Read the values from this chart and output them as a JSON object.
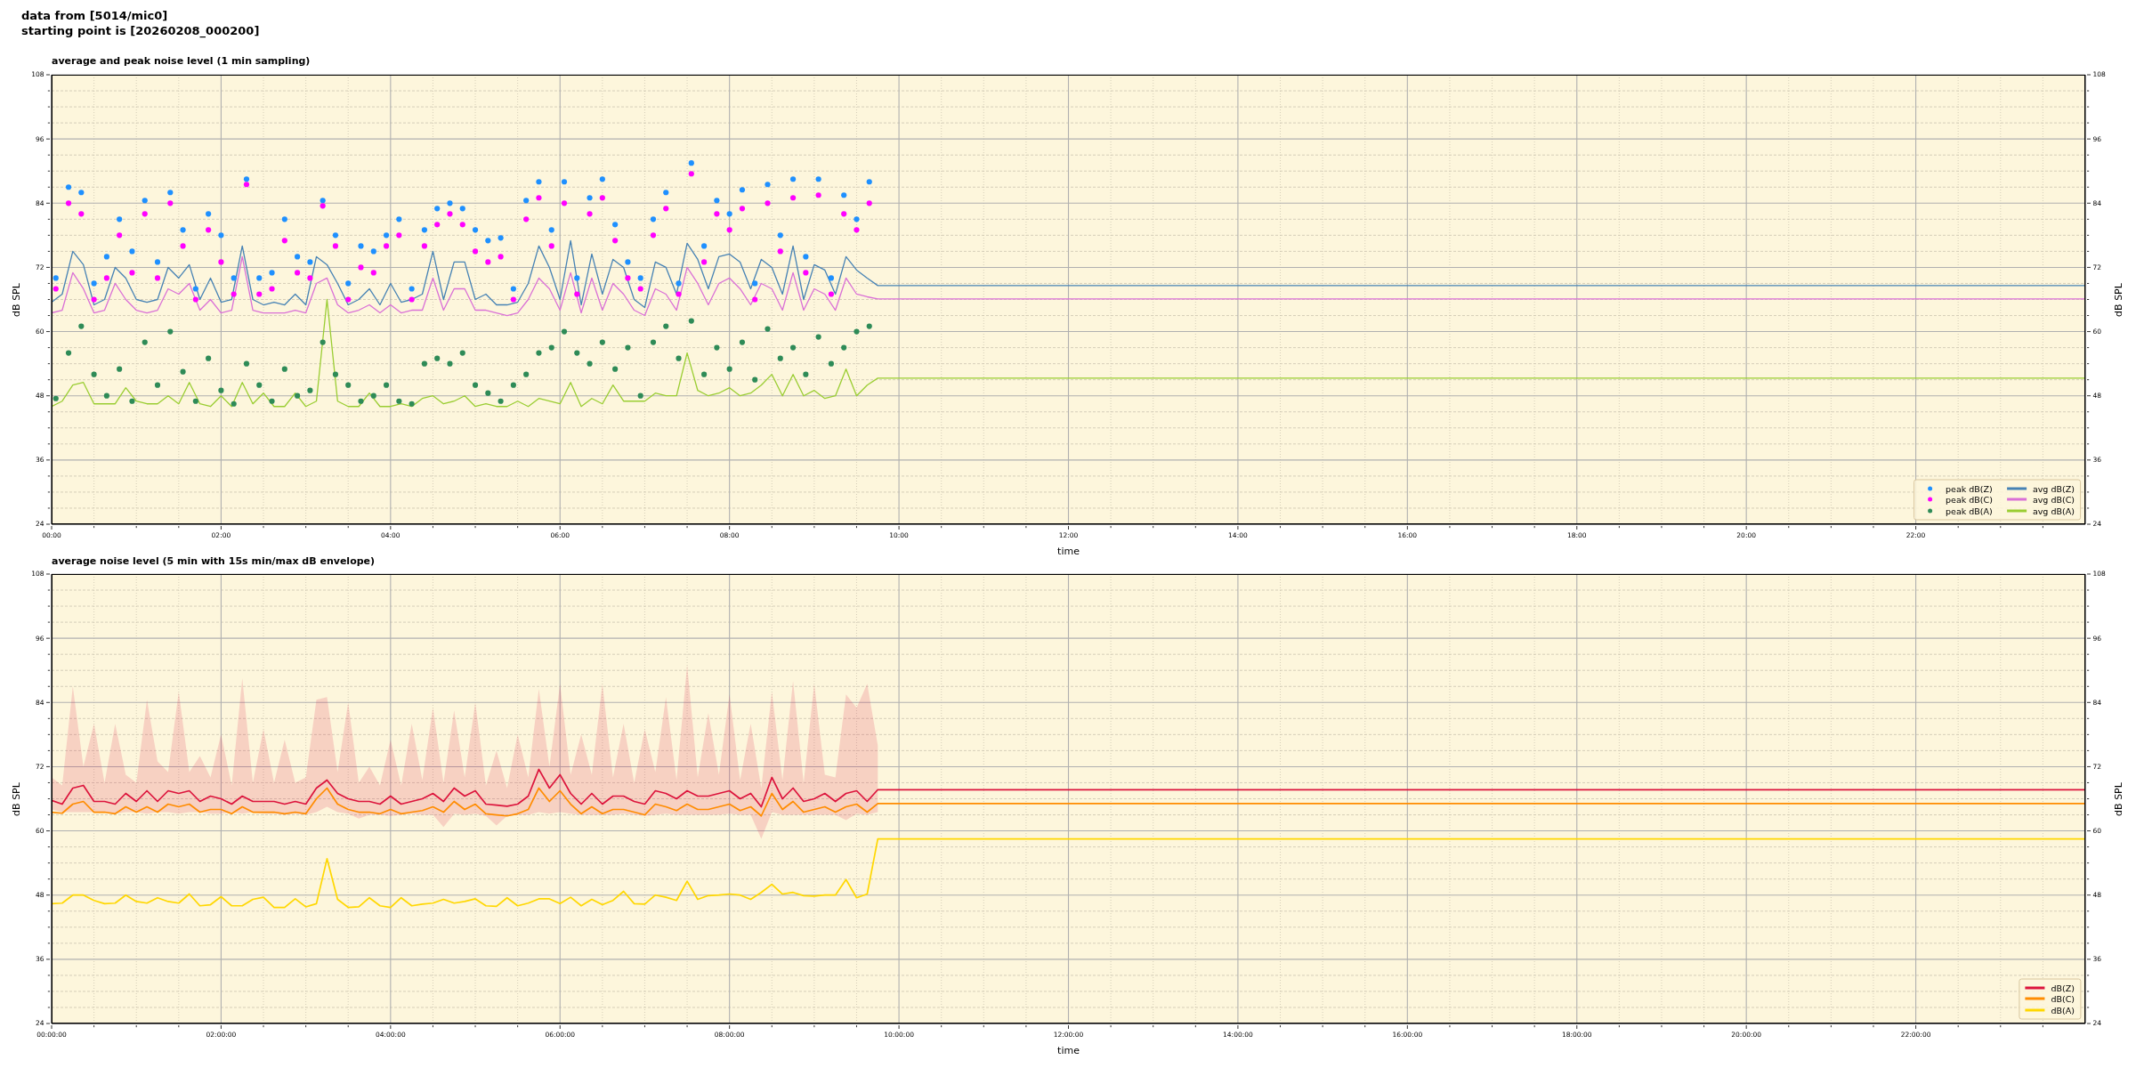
{
  "chart_data": [
    {
      "type": "line",
      "title": "average and peak noise level (1 min sampling)",
      "annotations": [
        "data from [5014/mic0]",
        "starting point is [20260208_000200]"
      ],
      "xlabel": "time",
      "ylabel": "dB SPL",
      "y2label": "dB SPL",
      "x": [
        0,
        0.125,
        0.25,
        0.375,
        0.5,
        0.625,
        0.75,
        0.875,
        1,
        1.125,
        1.25,
        1.375,
        1.5,
        1.625,
        1.75,
        1.875,
        2,
        2.125,
        2.25,
        2.375,
        2.5,
        2.625,
        2.75,
        2.875,
        3,
        3.125,
        3.25,
        3.375,
        3.5,
        3.625,
        3.75,
        3.875,
        4,
        4.125,
        4.25,
        4.375,
        4.5,
        4.625,
        4.75,
        4.875,
        5,
        5.125,
        5.25,
        5.375,
        5.5,
        5.625,
        5.75,
        5.875,
        6,
        6.125,
        6.25,
        6.375,
        6.5,
        6.625,
        6.75,
        6.875,
        7,
        7.125,
        7.25,
        7.375,
        7.5,
        7.625,
        7.75,
        7.875,
        8,
        8.125,
        8.25,
        8.375,
        8.5,
        8.625,
        8.75,
        8.875,
        9,
        9.125,
        9.25,
        9.375,
        9.5,
        9.625,
        9.75,
        24
      ],
      "xlim": [
        0,
        24
      ],
      "xticks": [
        {
          "value": 0,
          "label": "00:00"
        },
        {
          "value": 0.5,
          "label": null
        },
        {
          "value": 1,
          "label": null
        },
        {
          "value": 1.5,
          "label": null
        },
        {
          "value": 2,
          "label": "02:00"
        },
        {
          "value": 2.5,
          "label": null
        },
        {
          "value": 3,
          "label": null
        },
        {
          "value": 3.5,
          "label": null
        },
        {
          "value": 4,
          "label": "04:00"
        },
        {
          "value": 4.5,
          "label": null
        },
        {
          "value": 5,
          "label": null
        },
        {
          "value": 5.5,
          "label": null
        },
        {
          "value": 6,
          "label": "06:00"
        },
        {
          "value": 6.5,
          "label": null
        },
        {
          "value": 7,
          "label": null
        },
        {
          "value": 7.5,
          "label": null
        },
        {
          "value": 8,
          "label": "08:00"
        },
        {
          "value": 8.5,
          "label": null
        },
        {
          "value": 9,
          "label": null
        },
        {
          "value": 9.5,
          "label": null
        },
        {
          "value": 10,
          "label": "10:00"
        },
        {
          "value": 10.5,
          "label": null
        },
        {
          "value": 11,
          "label": null
        },
        {
          "value": 11.5,
          "label": null
        },
        {
          "value": 12,
          "label": "12:00"
        },
        {
          "value": 12.5,
          "label": null
        },
        {
          "value": 13,
          "label": null
        },
        {
          "value": 13.5,
          "label": null
        },
        {
          "value": 14,
          "label": "14:00"
        },
        {
          "value": 14.5,
          "label": null
        },
        {
          "value": 15,
          "label": null
        },
        {
          "value": 15.5,
          "label": null
        },
        {
          "value": 16,
          "label": "16:00"
        },
        {
          "value": 16.5,
          "label": null
        },
        {
          "value": 17,
          "label": null
        },
        {
          "value": 17.5,
          "label": null
        },
        {
          "value": 18,
          "label": "18:00"
        },
        {
          "value": 18.5,
          "label": null
        },
        {
          "value": 19,
          "label": null
        },
        {
          "value": 19.5,
          "label": null
        },
        {
          "value": 20,
          "label": "20:00"
        },
        {
          "value": 20.5,
          "label": null
        },
        {
          "value": 21,
          "label": null
        },
        {
          "value": 21.5,
          "label": null
        },
        {
          "value": 22,
          "label": "22:00"
        },
        {
          "value": 22.5,
          "label": null
        },
        {
          "value": 23,
          "label": null
        },
        {
          "value": 23.5,
          "label": null
        }
      ],
      "ylim": [
        24,
        108
      ],
      "yticks": [
        24,
        {
          "value": 27,
          "label": null
        },
        {
          "value": 30,
          "label": null
        },
        {
          "value": 33,
          "label": null
        },
        36,
        {
          "value": 39,
          "label": null
        },
        {
          "value": 42,
          "label": null
        },
        {
          "value": 45,
          "label": null
        },
        48,
        {
          "value": 51,
          "label": null
        },
        {
          "value": 54,
          "label": null
        },
        {
          "value": 57,
          "label": null
        },
        60,
        {
          "value": 63,
          "label": null
        },
        {
          "value": 66,
          "label": null
        },
        {
          "value": 69,
          "label": null
        },
        72,
        {
          "value": 75,
          "label": null
        },
        {
          "value": 78,
          "label": null
        },
        {
          "value": 81,
          "label": null
        },
        84,
        {
          "value": 87,
          "label": null
        },
        {
          "value": 90,
          "label": null
        },
        {
          "value": 93,
          "label": null
        },
        96,
        {
          "value": 99,
          "label": null
        },
        {
          "value": 102,
          "label": null
        },
        {
          "value": 105,
          "label": null
        },
        108
      ],
      "y2lim": [
        24,
        108
      ],
      "y2ticks": [
        24,
        {
          "value": 27,
          "label": null
        },
        {
          "value": 30,
          "label": null
        },
        {
          "value": 33,
          "label": null
        },
        36,
        {
          "value": 39,
          "label": null
        },
        {
          "value": 42,
          "label": null
        },
        {
          "value": 45,
          "label": null
        },
        48,
        {
          "value": 51,
          "label": null
        },
        {
          "value": 54,
          "label": null
        },
        {
          "value": 57,
          "label": null
        },
        60,
        {
          "value": 63,
          "label": null
        },
        {
          "value": 66,
          "label": null
        },
        {
          "value": 69,
          "label": null
        },
        72,
        {
          "value": 75,
          "label": null
        },
        {
          "value": 78,
          "label": null
        },
        {
          "value": 81,
          "label": null
        },
        84,
        {
          "value": 87,
          "label": null
        },
        {
          "value": 90,
          "label": null
        },
        {
          "value": 93,
          "label": null
        },
        96,
        {
          "value": 99,
          "label": null
        },
        {
          "value": 102,
          "label": null
        },
        {
          "value": 105,
          "label": null
        },
        108
      ],
      "grid": true,
      "legend": "bottom right",
      "series": [
        {
          "type": "scatter",
          "name": "peak dB(Z)",
          "color": "#1e90ff",
          "x": [
            0.05,
            0.2,
            0.35,
            0.5,
            0.65,
            0.8,
            0.95,
            1.1,
            1.25,
            1.4,
            1.55,
            1.7,
            1.85,
            2,
            2.15,
            2.3,
            2.45,
            2.6,
            2.75,
            2.9,
            3.05,
            3.2,
            3.35,
            3.5,
            3.65,
            3.8,
            3.95,
            4.1,
            4.25,
            4.4,
            4.55,
            4.7,
            4.85,
            5,
            5.15,
            5.3,
            5.45,
            5.6,
            5.75,
            5.9,
            6.05,
            6.2,
            6.35,
            6.5,
            6.65,
            6.8,
            6.95,
            7.1,
            7.25,
            7.4,
            7.55,
            7.7,
            7.85,
            8,
            8.15,
            8.3,
            8.45,
            8.6,
            8.75,
            8.9,
            9.05,
            9.2,
            9.35,
            9.5,
            9.65
          ],
          "values": [
            70,
            87,
            86,
            69,
            74,
            81,
            75,
            84.5,
            73,
            86,
            79,
            68,
            82,
            78,
            70,
            88.5,
            70,
            71,
            81,
            74,
            73,
            84.5,
            78,
            69,
            76,
            75,
            78,
            81,
            68,
            79,
            83,
            84,
            83,
            79,
            77,
            77.5,
            68,
            84.5,
            88,
            79,
            88,
            70,
            85,
            88.5,
            80,
            73,
            70,
            81,
            86,
            69,
            91.5,
            76,
            84.5,
            82,
            86.5,
            69,
            87.5,
            78,
            88.5,
            74,
            88.5,
            70,
            85.5,
            81,
            88
          ]
        },
        {
          "type": "scatter",
          "name": "peak dB(C)",
          "color": "#ff00ff",
          "x": [
            0.05,
            0.2,
            0.35,
            0.5,
            0.65,
            0.8,
            0.95,
            1.1,
            1.25,
            1.4,
            1.55,
            1.7,
            1.85,
            2,
            2.15,
            2.3,
            2.45,
            2.6,
            2.75,
            2.9,
            3.05,
            3.2,
            3.35,
            3.5,
            3.65,
            3.8,
            3.95,
            4.1,
            4.25,
            4.4,
            4.55,
            4.7,
            4.85,
            5,
            5.15,
            5.3,
            5.45,
            5.6,
            5.75,
            5.9,
            6.05,
            6.2,
            6.35,
            6.5,
            6.65,
            6.8,
            6.95,
            7.1,
            7.25,
            7.4,
            7.55,
            7.7,
            7.85,
            8,
            8.15,
            8.3,
            8.45,
            8.6,
            8.75,
            8.9,
            9.05,
            9.2,
            9.35,
            9.5,
            9.65
          ],
          "values": [
            68,
            84,
            82,
            66,
            70,
            78,
            71,
            82,
            70,
            84,
            76,
            66,
            79,
            73,
            67,
            87.5,
            67,
            68,
            77,
            71,
            70,
            83.5,
            76,
            66,
            72,
            71,
            76,
            78,
            66,
            76,
            80,
            82,
            80,
            75,
            73,
            74,
            66,
            81,
            85,
            76,
            84,
            67,
            82,
            85,
            77,
            70,
            68,
            78,
            83,
            67,
            89.5,
            73,
            82,
            79,
            83,
            66,
            84,
            75,
            85,
            71,
            85.5,
            67,
            82,
            79,
            84
          ]
        },
        {
          "type": "scatter",
          "name": "peak dB(A)",
          "color": "#2e8b57",
          "x": [
            0.05,
            0.2,
            0.35,
            0.5,
            0.65,
            0.8,
            0.95,
            1.1,
            1.25,
            1.4,
            1.55,
            1.7,
            1.85,
            2,
            2.15,
            2.3,
            2.45,
            2.6,
            2.75,
            2.9,
            3.05,
            3.2,
            3.35,
            3.5,
            3.65,
            3.8,
            3.95,
            4.1,
            4.25,
            4.4,
            4.55,
            4.7,
            4.85,
            5,
            5.15,
            5.3,
            5.45,
            5.6,
            5.75,
            5.9,
            6.05,
            6.2,
            6.35,
            6.5,
            6.65,
            6.8,
            6.95,
            7.1,
            7.25,
            7.4,
            7.55,
            7.7,
            7.85,
            8,
            8.15,
            8.3,
            8.45,
            8.6,
            8.75,
            8.9,
            9.05,
            9.2,
            9.35,
            9.5,
            9.65
          ],
          "values": [
            47.5,
            56,
            61,
            52,
            48,
            53,
            47,
            58,
            50,
            60,
            52.5,
            47,
            55,
            49,
            46.5,
            54,
            50,
            47,
            53,
            48,
            49,
            58,
            52,
            50,
            47,
            48,
            50,
            47,
            46.5,
            54,
            55,
            54,
            56,
            50,
            48.5,
            47,
            50,
            52,
            56,
            57,
            60,
            56,
            54,
            58,
            53,
            57,
            48,
            58,
            61,
            55,
            62,
            52,
            57,
            53,
            58,
            51,
            60.5,
            55,
            57,
            52,
            59,
            54,
            57,
            60,
            61
          ]
        },
        {
          "name": "avg dB(Z)",
          "color": "#4682b4",
          "values": [
            65.5,
            67,
            75,
            72.5,
            65,
            66,
            72,
            70,
            66,
            65.5,
            66,
            72,
            70,
            72.5,
            66,
            70,
            65.5,
            66,
            76,
            66,
            65,
            65.5,
            65,
            67,
            65,
            74,
            72.5,
            69,
            65,
            66,
            68,
            65,
            69,
            65.5,
            66,
            67,
            75,
            66,
            73,
            73,
            66,
            67,
            65,
            65,
            65.5,
            69,
            76,
            72,
            66,
            77,
            65,
            74.5,
            67,
            73.5,
            72,
            66,
            64.5,
            73,
            72,
            67,
            76.5,
            73.5,
            68,
            74,
            74.5,
            73,
            68,
            73.5,
            72,
            67,
            76,
            66,
            72.5,
            71.5,
            67,
            74,
            71.5,
            70,
            68.6,
            68.6
          ]
        },
        {
          "name": "avg dB(C)",
          "color": "#da70d6",
          "values": [
            63.5,
            64,
            71,
            68,
            63.5,
            64,
            69,
            66,
            64,
            63.5,
            64,
            68,
            67,
            69,
            64,
            66,
            63.5,
            64,
            74,
            64,
            63.5,
            63.5,
            63.5,
            64,
            63.5,
            69,
            70,
            65,
            63.5,
            64,
            65,
            63.5,
            65,
            63.5,
            64,
            64,
            70,
            64,
            68,
            68,
            64,
            64,
            63.5,
            63,
            63.5,
            66,
            70,
            68,
            64,
            71,
            63.5,
            70,
            64,
            69,
            67,
            64,
            63,
            68,
            67,
            64,
            72,
            69,
            65,
            69,
            70,
            68,
            65,
            69,
            68,
            64,
            71,
            64,
            68,
            67,
            64,
            70,
            67,
            66.5,
            66.1,
            66.1
          ]
        },
        {
          "name": "avg dB(A)",
          "color": "#9acd32",
          "values": [
            46,
            47,
            50,
            50.5,
            46.5,
            46.5,
            46.5,
            49.5,
            47,
            46.5,
            46.5,
            48,
            46.5,
            50.5,
            46.5,
            46,
            48,
            46,
            50.5,
            46.5,
            48.5,
            46,
            46,
            48.5,
            46,
            47,
            66,
            47,
            46,
            46,
            48.5,
            46,
            46,
            46.5,
            46,
            47.5,
            48,
            46.5,
            47,
            48,
            46,
            46.5,
            46,
            46,
            47,
            46,
            47.5,
            47,
            46.5,
            50.5,
            46,
            47.5,
            46.5,
            50,
            47,
            47,
            47,
            48.5,
            48,
            48,
            56,
            49,
            48,
            48.5,
            49.5,
            48,
            48.5,
            50,
            52,
            48,
            52,
            48,
            49,
            47.5,
            48,
            53,
            48,
            50,
            51.3,
            51.3
          ]
        }
      ]
    },
    {
      "type": "line",
      "title": "average noise level (5 min with 15s min/max dB envelope)",
      "xlabel": "time",
      "ylabel": "dB SPL",
      "y2label": "dB SPL",
      "x": [
        0,
        0.125,
        0.25,
        0.375,
        0.5,
        0.625,
        0.75,
        0.875,
        1,
        1.125,
        1.25,
        1.375,
        1.5,
        1.625,
        1.75,
        1.875,
        2,
        2.125,
        2.25,
        2.375,
        2.5,
        2.625,
        2.75,
        2.875,
        3,
        3.125,
        3.25,
        3.375,
        3.5,
        3.625,
        3.75,
        3.875,
        4,
        4.125,
        4.25,
        4.375,
        4.5,
        4.625,
        4.75,
        4.875,
        5,
        5.125,
        5.25,
        5.375,
        5.5,
        5.625,
        5.75,
        5.875,
        6,
        6.125,
        6.25,
        6.375,
        6.5,
        6.625,
        6.75,
        6.875,
        7,
        7.125,
        7.25,
        7.375,
        7.5,
        7.625,
        7.75,
        7.875,
        8,
        8.125,
        8.25,
        8.375,
        8.5,
        8.625,
        8.75,
        8.875,
        9,
        9.125,
        9.25,
        9.375,
        9.5,
        9.625,
        9.75,
        24
      ],
      "xlim": [
        0,
        24
      ],
      "xticks": [
        {
          "value": 0,
          "label": "00:00:00"
        },
        {
          "value": 0.5,
          "label": null
        },
        {
          "value": 1,
          "label": null
        },
        {
          "value": 1.5,
          "label": null
        },
        {
          "value": 2,
          "label": "02:00:00"
        },
        {
          "value": 2.5,
          "label": null
        },
        {
          "value": 3,
          "label": null
        },
        {
          "value": 3.5,
          "label": null
        },
        {
          "value": 4,
          "label": "04:00:00"
        },
        {
          "value": 4.5,
          "label": null
        },
        {
          "value": 5,
          "label": null
        },
        {
          "value": 5.5,
          "label": null
        },
        {
          "value": 6,
          "label": "06:00:00"
        },
        {
          "value": 6.5,
          "label": null
        },
        {
          "value": 7,
          "label": null
        },
        {
          "value": 7.5,
          "label": null
        },
        {
          "value": 8,
          "label": "08:00:00"
        },
        {
          "value": 8.5,
          "label": null
        },
        {
          "value": 9,
          "label": null
        },
        {
          "value": 9.5,
          "label": null
        },
        {
          "value": 10,
          "label": "10:00:00"
        },
        {
          "value": 10.5,
          "label": null
        },
        {
          "value": 11,
          "label": null
        },
        {
          "value": 11.5,
          "label": null
        },
        {
          "value": 12,
          "label": "12:00:00"
        },
        {
          "value": 12.5,
          "label": null
        },
        {
          "value": 13,
          "label": null
        },
        {
          "value": 13.5,
          "label": null
        },
        {
          "value": 14,
          "label": "14:00:00"
        },
        {
          "value": 14.5,
          "label": null
        },
        {
          "value": 15,
          "label": null
        },
        {
          "value": 15.5,
          "label": null
        },
        {
          "value": 16,
          "label": "16:00:00"
        },
        {
          "value": 16.5,
          "label": null
        },
        {
          "value": 17,
          "label": null
        },
        {
          "value": 17.5,
          "label": null
        },
        {
          "value": 18,
          "label": "18:00:00"
        },
        {
          "value": 18.5,
          "label": null
        },
        {
          "value": 19,
          "label": null
        },
        {
          "value": 19.5,
          "label": null
        },
        {
          "value": 20,
          "label": "20:00:00"
        },
        {
          "value": 20.5,
          "label": null
        },
        {
          "value": 21,
          "label": null
        },
        {
          "value": 21.5,
          "label": null
        },
        {
          "value": 22,
          "label": "22:00:00"
        },
        {
          "value": 22.5,
          "label": null
        },
        {
          "value": 23,
          "label": null
        },
        {
          "value": 23.5,
          "label": null
        }
      ],
      "ylim": [
        24,
        108
      ],
      "yticks": [
        24,
        {
          "value": 27,
          "label": null
        },
        {
          "value": 30,
          "label": null
        },
        {
          "value": 33,
          "label": null
        },
        36,
        {
          "value": 39,
          "label": null
        },
        {
          "value": 42,
          "label": null
        },
        {
          "value": 45,
          "label": null
        },
        48,
        {
          "value": 51,
          "label": null
        },
        {
          "value": 54,
          "label": null
        },
        {
          "value": 57,
          "label": null
        },
        60,
        {
          "value": 63,
          "label": null
        },
        {
          "value": 66,
          "label": null
        },
        {
          "value": 69,
          "label": null
        },
        72,
        {
          "value": 75,
          "label": null
        },
        {
          "value": 78,
          "label": null
        },
        {
          "value": 81,
          "label": null
        },
        84,
        {
          "value": 87,
          "label": null
        },
        {
          "value": 90,
          "label": null
        },
        {
          "value": 93,
          "label": null
        },
        96,
        {
          "value": 99,
          "label": null
        },
        {
          "value": 102,
          "label": null
        },
        {
          "value": 105,
          "label": null
        },
        108
      ],
      "y2lim": [
        24,
        108
      ],
      "y2ticks": [
        24,
        {
          "value": 27,
          "label": null
        },
        {
          "value": 30,
          "label": null
        },
        {
          "value": 33,
          "label": null
        },
        36,
        {
          "value": 39,
          "label": null
        },
        {
          "value": 42,
          "label": null
        },
        {
          "value": 45,
          "label": null
        },
        48,
        {
          "value": 51,
          "label": null
        },
        {
          "value": 54,
          "label": null
        },
        {
          "value": 57,
          "label": null
        },
        60,
        {
          "value": 63,
          "label": null
        },
        {
          "value": 66,
          "label": null
        },
        {
          "value": 69,
          "label": null
        },
        72,
        {
          "value": 75,
          "label": null
        },
        {
          "value": 78,
          "label": null
        },
        {
          "value": 81,
          "label": null
        },
        84,
        {
          "value": 87,
          "label": null
        },
        {
          "value": 90,
          "label": null
        },
        {
          "value": 93,
          "label": null
        },
        96,
        {
          "value": 99,
          "label": null
        },
        {
          "value": 102,
          "label": null
        },
        {
          "value": 105,
          "label": null
        },
        108
      ],
      "grid": true,
      "legend": "bottom right",
      "series": [
        {
          "name": "dB(Z)",
          "color": "#dc143c",
          "values": [
            65.7,
            65,
            68,
            68.5,
            65.5,
            65.5,
            65,
            67,
            65.5,
            67.5,
            65.5,
            67.5,
            67,
            67.5,
            65.5,
            66.5,
            66,
            65,
            66.5,
            65.5,
            65.5,
            65.5,
            65,
            65.5,
            65,
            68,
            69.5,
            67,
            66,
            65.5,
            65.5,
            65,
            66.5,
            65,
            65.5,
            66,
            67,
            65.5,
            68,
            66.5,
            67.5,
            65,
            64.8,
            64.6,
            65,
            66.5,
            71.5,
            68,
            70.5,
            67,
            65,
            67,
            65,
            66.5,
            66.5,
            65.5,
            65,
            67.5,
            67,
            66,
            67.5,
            66.5,
            66.5,
            67,
            67.5,
            66,
            67,
            64.5,
            70,
            66,
            68,
            65.5,
            66,
            67,
            65.5,
            67,
            67.5,
            65.5,
            67.7,
            67.7
          ],
          "lower": [
            64,
            63.5,
            63.5,
            63.5,
            63.5,
            63.5,
            63.2,
            63.5,
            63.5,
            63.2,
            63.5,
            63.5,
            63.2,
            63.5,
            63.5,
            63.2,
            63.2,
            63.5,
            63.2,
            63.5,
            63.2,
            63.2,
            63,
            63.2,
            63,
            63.5,
            64.5,
            63.5,
            63.2,
            62.3,
            63,
            63,
            62.8,
            63,
            63.2,
            63,
            63,
            60.7,
            63.2,
            63,
            63.2,
            62.8,
            61,
            62.8,
            63,
            63,
            63.5,
            63.2,
            63.5,
            63.2,
            63,
            63,
            63,
            63,
            63.2,
            63,
            62.8,
            63,
            63.2,
            63,
            63,
            63,
            63,
            63,
            63.2,
            63,
            63,
            58.5,
            63.5,
            63,
            63,
            63,
            63,
            63,
            63,
            62,
            63.2,
            63,
            63.5,
            null
          ],
          "upper": [
            70,
            68.5,
            87,
            72,
            80,
            69,
            80,
            70.5,
            69,
            84.5,
            73,
            71,
            86,
            71,
            74,
            70,
            78,
            68.5,
            88.5,
            69,
            79,
            69,
            77,
            69,
            70,
            84.5,
            85,
            71,
            84,
            69,
            72,
            68.5,
            77,
            68.5,
            80,
            69.5,
            83,
            69,
            82.5,
            70,
            84,
            68.5,
            75,
            68,
            78,
            70,
            86.5,
            72,
            87.5,
            70.5,
            78,
            70.5,
            87.5,
            70,
            80,
            69,
            79,
            71,
            85,
            69.5,
            91,
            70,
            82,
            70.5,
            85.5,
            69.5,
            80,
            68,
            86,
            69.5,
            88,
            69,
            87.5,
            70.5,
            70,
            85.5,
            83,
            87.5,
            76,
            null
          ]
        },
        {
          "name": "dB(C)",
          "color": "#ff8c00",
          "values": [
            63.5,
            63.3,
            65,
            65.5,
            63.5,
            63.5,
            63.2,
            64.5,
            63.5,
            64.5,
            63.5,
            65,
            64.5,
            65,
            63.5,
            64,
            64,
            63.2,
            64.5,
            63.5,
            63.5,
            63.5,
            63.2,
            63.5,
            63.2,
            66,
            68,
            65,
            64,
            63.5,
            63.5,
            63.2,
            64,
            63.2,
            63.5,
            63.8,
            64.5,
            63.5,
            65.5,
            64,
            65,
            63.2,
            63,
            62.8,
            63.2,
            64,
            68,
            65.5,
            67.5,
            65,
            63.2,
            64.5,
            63.2,
            64,
            64,
            63.5,
            63,
            65,
            64.5,
            63.8,
            65,
            64,
            64,
            64.5,
            65,
            63.8,
            64.5,
            62.8,
            67,
            64,
            65.5,
            63.5,
            64,
            64.5,
            63.5,
            64.5,
            65,
            63.5,
            65.1,
            65.1
          ]
        },
        {
          "name": "dB(A)",
          "color": "#ffd700",
          "values": [
            46.4,
            46.5,
            48,
            48,
            47,
            46.4,
            46.5,
            48,
            46.8,
            46.5,
            47.5,
            46.8,
            46.5,
            48.2,
            46,
            46.2,
            47.7,
            46,
            46,
            47.2,
            47.6,
            45.7,
            45.7,
            47.3,
            45.8,
            46.4,
            54.8,
            47.2,
            45.7,
            45.8,
            47.5,
            46,
            45.7,
            47.5,
            46,
            46.3,
            46.5,
            47.2,
            46.5,
            46.8,
            47.3,
            46,
            45.9,
            47.5,
            46,
            46.5,
            47.3,
            47.3,
            46.4,
            47.6,
            46,
            47.2,
            46.2,
            47,
            48.7,
            46.4,
            46.3,
            48,
            47.6,
            47,
            50.6,
            47.2,
            47.9,
            48,
            48.2,
            48,
            47.2,
            48.5,
            50,
            48.2,
            48.5,
            47.9,
            47.8,
            48,
            48,
            50.9,
            47.5,
            48.2,
            58.5,
            58.5
          ]
        }
      ]
    }
  ]
}
